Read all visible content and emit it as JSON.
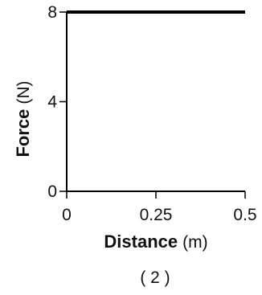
{
  "chart_data": {
    "type": "line",
    "xlabel": "Distance",
    "xlabel_unit": "(m)",
    "ylabel": "Force",
    "ylabel_unit": "(N)",
    "xlim": [
      0,
      0.5
    ],
    "ylim": [
      0,
      8
    ],
    "x_ticks": [
      {
        "value": 0,
        "label": "0"
      },
      {
        "value": 0.25,
        "label": "0.25"
      },
      {
        "value": 0.5,
        "label": "0.5"
      }
    ],
    "y_ticks": [
      {
        "value": 0,
        "label": "0"
      },
      {
        "value": 4,
        "label": "4"
      },
      {
        "value": 8,
        "label": "8"
      }
    ],
    "series": [
      {
        "x": [
          0,
          0.5
        ],
        "y": [
          8,
          8
        ],
        "color": "#000000"
      }
    ],
    "grid": false,
    "panel_label": "( 2 )"
  }
}
